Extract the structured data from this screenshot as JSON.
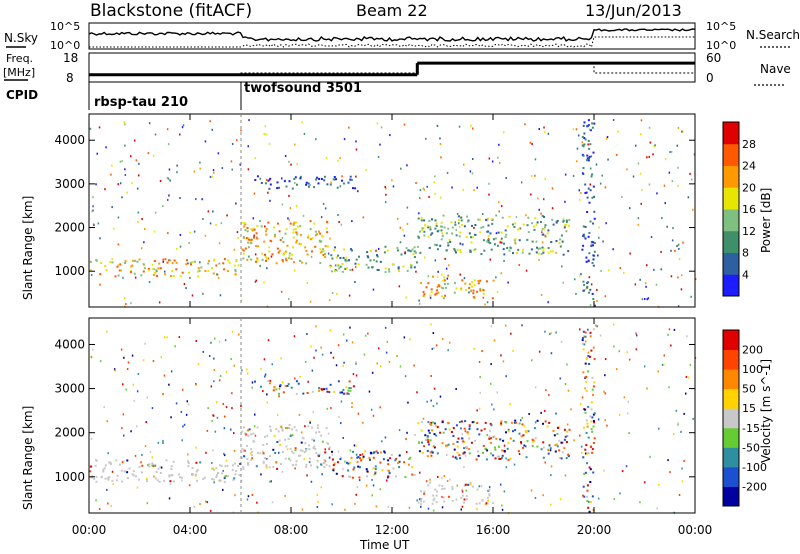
{
  "header": {
    "station": "Blackstone (fitACF)",
    "beam": "Beam 22",
    "date": "13/Jun/2013"
  },
  "top_panels": {
    "nsky_label": "N.Sky",
    "nsearch_label": "N.Search",
    "nsky_ticks": [
      "10^5",
      "10^0"
    ],
    "nsearch_ticks": [
      "10^5",
      "10^0"
    ],
    "freq_label_1": "Freq.",
    "freq_label_2": "[MHz]",
    "freq_ticks": [
      "18",
      "8"
    ],
    "nave_label": "Nave",
    "nave_ticks": [
      "60",
      "0"
    ],
    "cpid_label": "CPID",
    "cpid_entries": [
      {
        "name": "rbsp-tau 210",
        "start_hour": 0
      },
      {
        "name": "twofsound 3501",
        "start_hour": 6
      }
    ]
  },
  "chart_data": [
    {
      "type": "heatmap",
      "name": "power",
      "ylabel": "Slant Range [km]",
      "ylim": [
        180,
        4600
      ],
      "yticks": [
        "4000",
        "3000",
        "2000",
        "1000"
      ],
      "colorbar_label": "Power [dB]",
      "colorbar_ticks": [
        "28",
        "24",
        "20",
        "16",
        "12",
        "8",
        "4"
      ],
      "colors": [
        "#1c1cff",
        "#2c60a0",
        "#3e8f6a",
        "#7fc080",
        "#e6e600",
        "#ff9900",
        "#ff5a00",
        "#e00000"
      ],
      "regions": [
        {
          "t0": 0,
          "t1": 6,
          "r0": 900,
          "r1": 1300,
          "level": "high"
        },
        {
          "t0": 6,
          "t1": 9.5,
          "r0": 1200,
          "r1": 2200,
          "level": "high"
        },
        {
          "t0": 9.5,
          "t1": 13,
          "r0": 1000,
          "r1": 1600,
          "level": "mid"
        },
        {
          "t0": 13,
          "t1": 16,
          "r0": 400,
          "r1": 900,
          "level": "high"
        },
        {
          "t0": 13,
          "t1": 19,
          "r0": 1400,
          "r1": 2300,
          "level": "mid"
        },
        {
          "t0": 6.5,
          "t1": 10.5,
          "r0": 2900,
          "r1": 3200,
          "level": "low"
        },
        {
          "t0": 19.5,
          "t1": 20,
          "r0": 200,
          "r1": 4500,
          "level": "low"
        }
      ]
    },
    {
      "type": "heatmap",
      "name": "velocity",
      "ylabel": "Slant Range [km]",
      "ylim": [
        180,
        4600
      ],
      "yticks": [
        "4000",
        "3000",
        "2000",
        "1000"
      ],
      "colorbar_label": "Velocity [m s^-1]",
      "colorbar_ticks": [
        "200",
        "100",
        "50",
        "15",
        "-15",
        "-50",
        "-100",
        "-200"
      ],
      "colors": [
        "#0000a0",
        "#1c50d0",
        "#2e8fa0",
        "#66cc33",
        "#c8c8c8",
        "#ffd200",
        "#ff8800",
        "#ff4400",
        "#e00000"
      ],
      "regions": [
        {
          "t0": 0,
          "t1": 6,
          "r0": 900,
          "r1": 1400,
          "level": "ground"
        },
        {
          "t0": 6,
          "t1": 9.5,
          "r0": 1200,
          "r1": 2200,
          "level": "ground"
        },
        {
          "t0": 9.5,
          "t1": 13,
          "r0": 1000,
          "r1": 1600,
          "level": "mixed"
        },
        {
          "t0": 13,
          "t1": 16,
          "r0": 400,
          "r1": 900,
          "level": "ground"
        },
        {
          "t0": 13,
          "t1": 19,
          "r0": 1400,
          "r1": 2300,
          "level": "mixed"
        },
        {
          "t0": 6.5,
          "t1": 10.5,
          "r0": 2900,
          "r1": 3200,
          "level": "mixed"
        },
        {
          "t0": 19.5,
          "t1": 20,
          "r0": 200,
          "r1": 4500,
          "level": "mixed"
        }
      ]
    }
  ],
  "x_axis": {
    "label": "Time UT",
    "xlim": [
      0,
      24
    ],
    "ticks": [
      "00:00",
      "04:00",
      "08:00",
      "12:00",
      "16:00",
      "20:00",
      "00:00"
    ]
  },
  "frequency_series": [
    {
      "t0": 0,
      "t1": 6,
      "mhz": 10.5
    },
    {
      "t0": 6,
      "t1": 13,
      "mhz": 10.5
    },
    {
      "t0": 13,
      "t1": 20,
      "mhz": 14.5
    },
    {
      "t0": 20,
      "t1": 24,
      "mhz": 14.5
    }
  ],
  "colors": {
    "axis": "#000000",
    "dashed_marker": "#888888"
  }
}
